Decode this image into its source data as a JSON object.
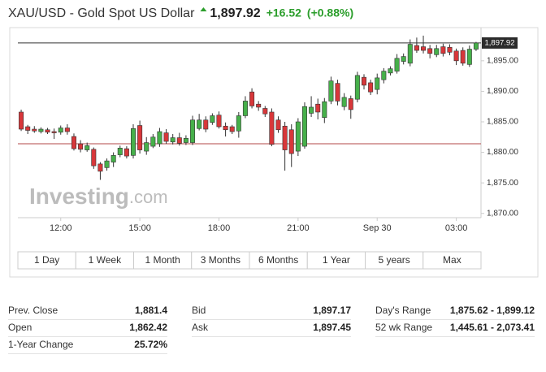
{
  "header": {
    "title": "XAU/USD - Gold Spot US Dollar",
    "price": "1,897.92",
    "change": "+16.52",
    "change_pct": "(+0.88%)"
  },
  "chart_data": {
    "type": "candlestick",
    "categories": [
      null,
      null,
      null,
      null,
      null,
      null,
      "12:00",
      null,
      null,
      null,
      null,
      null,
      null,
      null,
      null,
      null,
      null,
      null,
      "15:00",
      null,
      null,
      null,
      null,
      null,
      null,
      null,
      null,
      null,
      null,
      null,
      "18:00",
      null,
      null,
      null,
      null,
      null,
      null,
      null,
      null,
      null,
      null,
      null,
      "21:00",
      null,
      null,
      null,
      null,
      null,
      null,
      null,
      null,
      null,
      null,
      null,
      "Sep 30",
      null,
      null,
      null,
      null,
      null,
      null,
      null,
      null,
      null,
      null,
      null,
      "03:00",
      null,
      null,
      null
    ],
    "open": [
      1886.6,
      1884.2,
      1883.8,
      1883.4,
      1883.7,
      1883.4,
      1883.3,
      1884.0,
      1882.6,
      1881.4,
      1880.4,
      1880.5,
      1878.1,
      1877.5,
      1878.4,
      1879.6,
      1880.6,
      1879.5,
      1884.4,
      1880.2,
      1881.0,
      1881.4,
      1883.2,
      1881.7,
      1882.4,
      1881.6,
      1881.6,
      1883.9,
      1885.3,
      1884.9,
      1886.1,
      1884.3,
      1884.2,
      1883.5,
      1886.0,
      1889.9,
      1887.9,
      1887.2,
      1886.6,
      1885.3,
      1884.3,
      1883.7,
      1880.2,
      1881.0,
      1886.4,
      1887.9,
      1885.7,
      1888.4,
      1891.3,
      1887.5,
      1888.8,
      1888.7,
      1892.3,
      1891.4,
      1890.3,
      1891.9,
      1893.0,
      1893.3,
      1894.9,
      1894.6,
      1897.5,
      1897.3,
      1897.0,
      1896.0,
      1897.3,
      1897.2,
      1896.6,
      1896.7,
      1894.4,
      1896.9
    ],
    "high": [
      1887.0,
      1884.5,
      1884.3,
      1884.1,
      1884.0,
      1883.9,
      1884.4,
      1884.6,
      1883.1,
      1882.0,
      1881.6,
      1880.8,
      1878.4,
      1879.0,
      1880.0,
      1881.1,
      1881.0,
      1884.6,
      1885.2,
      1882.5,
      1883.0,
      1884.0,
      1883.8,
      1883.0,
      1883.2,
      1882.8,
      1886.0,
      1886.3,
      1885.9,
      1886.4,
      1886.7,
      1884.9,
      1884.5,
      1886.6,
      1889.2,
      1890.5,
      1888.4,
      1887.6,
      1887.2,
      1885.9,
      1885.0,
      1884.6,
      1885.6,
      1888.2,
      1889.2,
      1888.8,
      1888.9,
      1892.4,
      1891.9,
      1889.7,
      1889.3,
      1893.2,
      1892.8,
      1891.9,
      1892.9,
      1893.8,
      1894.1,
      1896.1,
      1896.2,
      1898.5,
      1898.8,
      1899.12,
      1897.6,
      1897.6,
      1897.8,
      1897.7,
      1897.0,
      1897.2,
      1897.5,
      1898.1
    ],
    "low": [
      1883.5,
      1883.0,
      1883.2,
      1883.1,
      1883.0,
      1882.2,
      1882.9,
      1882.9,
      1880.3,
      1880.0,
      1880.1,
      1877.3,
      1875.5,
      1877.0,
      1877.6,
      1879.2,
      1879.0,
      1879.0,
      1879.8,
      1879.6,
      1880.7,
      1880.9,
      1881.4,
      1881.3,
      1881.1,
      1881.2,
      1881.2,
      1883.6,
      1883.3,
      1884.5,
      1883.9,
      1882.6,
      1883.0,
      1882.4,
      1885.6,
      1887.2,
      1886.8,
      1885.8,
      1881.0,
      1883.2,
      1877.0,
      1877.6,
      1879.4,
      1880.6,
      1885.8,
      1885.4,
      1884.8,
      1887.9,
      1887.7,
      1886.9,
      1885.5,
      1888.2,
      1890.3,
      1889.4,
      1889.5,
      1891.3,
      1892.6,
      1892.9,
      1894.4,
      1894.1,
      1896.3,
      1896.2,
      1895.4,
      1895.6,
      1895.7,
      1895.9,
      1894.3,
      1894.2,
      1894.0,
      1896.6
    ],
    "close": [
      1883.8,
      1883.6,
      1883.5,
      1883.8,
      1883.3,
      1883.2,
      1884.0,
      1883.4,
      1880.6,
      1880.5,
      1881.1,
      1877.8,
      1876.9,
      1878.6,
      1879.5,
      1880.7,
      1879.4,
      1883.9,
      1880.4,
      1881.6,
      1882.5,
      1883.4,
      1881.8,
      1882.4,
      1881.5,
      1882.3,
      1885.3,
      1885.3,
      1883.8,
      1886.0,
      1884.2,
      1883.7,
      1883.4,
      1886.0,
      1888.4,
      1887.6,
      1887.4,
      1886.3,
      1881.3,
      1883.7,
      1880.4,
      1879.8,
      1885.0,
      1887.5,
      1887.4,
      1886.6,
      1888.3,
      1891.7,
      1888.4,
      1889.0,
      1887.0,
      1892.6,
      1891.0,
      1889.9,
      1892.2,
      1893.3,
      1893.7,
      1895.4,
      1895.7,
      1897.7,
      1896.7,
      1896.7,
      1896.2,
      1897.0,
      1896.2,
      1896.4,
      1895.0,
      1894.6,
      1896.9,
      1897.92
    ],
    "up_color": "#46b04a",
    "down_color": "#d8373a",
    "ylim": [
      1869.7,
      1900.3
    ],
    "yticks": [
      {
        "value": 1870,
        "label": "1,870.00"
      },
      {
        "value": 1875,
        "label": "1,875.00"
      },
      {
        "value": 1880,
        "label": "1,880.00"
      },
      {
        "value": 1885,
        "label": "1,885.00"
      },
      {
        "value": 1890,
        "label": "1,890.00"
      },
      {
        "value": 1895,
        "label": "1,895.00"
      }
    ],
    "prev_close_line": 1881.4,
    "last_price": {
      "value": 1897.92,
      "label": "1,897.92"
    },
    "watermark": [
      "Investing",
      ".com"
    ]
  },
  "range_buttons": [
    "1 Day",
    "1 Week",
    "1 Month",
    "3 Months",
    "6 Months",
    "1 Year",
    "5 years",
    "Max"
  ],
  "stats": [
    [
      {
        "label": "Prev. Close",
        "value": "1,881.4"
      },
      {
        "label": "Open",
        "value": "1,862.42"
      },
      {
        "label": "1-Year Change",
        "value": "25.72%"
      }
    ],
    [
      {
        "label": "Bid",
        "value": "1,897.17"
      },
      {
        "label": "Ask",
        "value": "1,897.45"
      }
    ],
    [
      {
        "label": "Day's Range",
        "value": "1,875.62 - 1,899.12"
      },
      {
        "label": "52 wk Range",
        "value": "1,445.61 - 2,073.41"
      }
    ]
  ]
}
